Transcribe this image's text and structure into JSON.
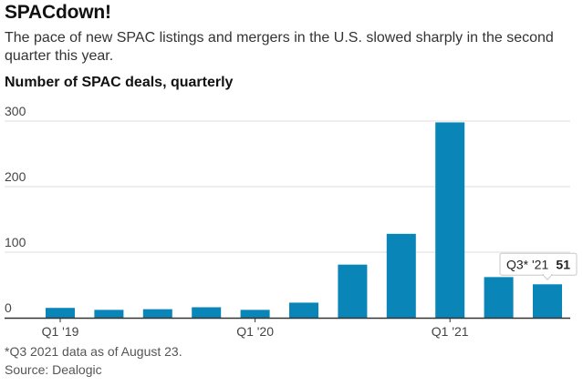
{
  "header": {
    "title": "SPACdown!",
    "subtitle": "The pace of new SPAC listings and mergers in the U.S. slowed sharply in the second quarter this year.",
    "ylabel": "Number of SPAC deals, quarterly"
  },
  "footer": {
    "footnote": "*Q3 2021 data as of August 23.",
    "source": "Source: Dealogic"
  },
  "tooltip": {
    "label": "Q3* '21",
    "value": "51"
  },
  "colors": {
    "bar": "#0a85b8",
    "grid": "#dcdcdc",
    "axis": "#333333"
  },
  "chart_data": {
    "type": "bar",
    "categories": [
      "Q1 '19",
      "Q2 '19",
      "Q3 '19",
      "Q4 '19",
      "Q1 '20",
      "Q2 '20",
      "Q3 '20",
      "Q4 '20",
      "Q1 '21",
      "Q2 '21",
      "Q3 '21"
    ],
    "x_tick_labels": [
      "Q1 '19",
      "",
      "",
      "",
      "Q1 '20",
      "",
      "",
      "",
      "Q1 '21",
      "",
      ""
    ],
    "values": [
      15,
      12,
      13,
      16,
      12,
      23,
      81,
      128,
      298,
      62,
      51
    ],
    "yticks": [
      0,
      100,
      200,
      300
    ],
    "ylim": [
      0,
      300
    ],
    "title": "SPACdown!",
    "ylabel": "Number of SPAC deals, quarterly",
    "xlabel": "",
    "grid": true,
    "highlight_index": 10
  }
}
